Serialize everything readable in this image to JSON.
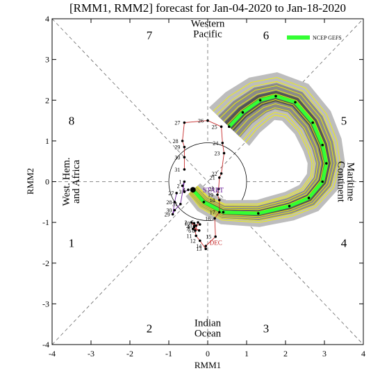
{
  "chart_data": {
    "type": "line",
    "title": "[RMM1, RMM2] forecast for Jan-04-2020 to Jan-18-2020",
    "xlabel": "RMM1",
    "ylabel": "RMM2",
    "xlim": [
      -4,
      4
    ],
    "ylim": [
      -4,
      4
    ],
    "xticks": [
      "-4",
      "-3",
      "-2",
      "-1",
      "0",
      "1",
      "2",
      "3",
      "4"
    ],
    "yticks": [
      "-4",
      "-3",
      "-2",
      "-1",
      "0",
      "1",
      "2",
      "3",
      "4"
    ],
    "grid": false,
    "legend": {
      "placement": "top-right",
      "entries": [
        {
          "name": "NCEP GEFS",
          "color": "#33ff33"
        }
      ]
    },
    "phases": [
      {
        "label": "1",
        "x": -3.5,
        "y": -1.5
      },
      {
        "label": "2",
        "x": -1.5,
        "y": -3.6
      },
      {
        "label": "3",
        "x": 1.5,
        "y": -3.6
      },
      {
        "label": "4",
        "x": 3.5,
        "y": -1.5
      },
      {
        "label": "5",
        "x": 3.5,
        "y": 1.5
      },
      {
        "label": "6",
        "x": 1.5,
        "y": 3.6
      },
      {
        "label": "7",
        "x": -1.5,
        "y": 3.6
      },
      {
        "label": "8",
        "x": -3.5,
        "y": 1.5
      }
    ],
    "regions": [
      {
        "name": "western-pacific",
        "lines": [
          "Western",
          "Pacific"
        ]
      },
      {
        "name": "indian-ocean",
        "lines": [
          "Indian",
          "Ocean"
        ]
      },
      {
        "name": "west-hem-africa",
        "lines": [
          "West. Hem.",
          "and Africa"
        ]
      },
      {
        "name": "maritime-continent",
        "lines": [
          "Maritime",
          "Continent"
        ]
      }
    ],
    "labels": {
      "start": "START",
      "month": "DEC"
    },
    "observed_dec": {
      "color": "#c62828",
      "points": [
        {
          "d": "1",
          "x": -0.35,
          "y": -1.1
        },
        {
          "d": "2",
          "x": -0.42,
          "y": -1.0
        },
        {
          "d": "3",
          "x": -0.3,
          "y": -1.08
        },
        {
          "d": "4",
          "x": -0.2,
          "y": -1.05
        },
        {
          "d": "5",
          "x": -0.25,
          "y": -1.0
        },
        {
          "d": "6",
          "x": -0.32,
          "y": -1.2
        },
        {
          "d": "7",
          "x": -0.38,
          "y": -1.16
        },
        {
          "d": "8",
          "x": -0.22,
          "y": -1.2
        },
        {
          "d": "9",
          "x": -0.35,
          "y": -1.12
        },
        {
          "d": "10",
          "x": -0.35,
          "y": -1.02
        },
        {
          "d": "11",
          "x": -0.3,
          "y": -1.33
        },
        {
          "d": "12",
          "x": -0.2,
          "y": -1.45
        },
        {
          "d": "13",
          "x": -0.05,
          "y": -1.65
        },
        {
          "d": "14",
          "x": -0.05,
          "y": -1.58
        },
        {
          "d": "15",
          "x": 0.2,
          "y": -1.35
        },
        {
          "d": "16",
          "x": 0.18,
          "y": -0.9
        },
        {
          "d": "17",
          "x": 0.3,
          "y": -0.75
        },
        {
          "d": "18",
          "x": 0.3,
          "y": -0.45
        },
        {
          "d": "19",
          "x": 0.25,
          "y": -0.32
        },
        {
          "d": "20",
          "x": 0.28,
          "y": -0.18
        },
        {
          "d": "21",
          "x": 0.3,
          "y": 0.1
        },
        {
          "d": "22",
          "x": 0.35,
          "y": 0.2
        },
        {
          "d": "23",
          "x": 0.42,
          "y": 0.7
        },
        {
          "d": "24",
          "x": 0.38,
          "y": 0.95
        },
        {
          "d": "25",
          "x": 0.35,
          "y": 1.35
        },
        {
          "d": "26",
          "x": 0.0,
          "y": 1.5
        },
        {
          "d": "27",
          "x": -0.6,
          "y": 1.45
        },
        {
          "d": "28",
          "x": -0.65,
          "y": 1.0
        },
        {
          "d": "29",
          "x": -0.6,
          "y": 0.85
        },
        {
          "d": "30",
          "x": -0.6,
          "y": 0.6
        },
        {
          "d": "31",
          "x": -0.6,
          "y": 0.3
        }
      ]
    },
    "observed_jan": {
      "color": "#6a1b9a",
      "points": [
        {
          "d": "1",
          "x": -0.6,
          "y": 0.0
        },
        {
          "d": "2",
          "x": -0.65,
          "y": -0.1
        },
        {
          "d": "3",
          "x": -0.6,
          "y": -0.25
        },
        {
          "d": "4",
          "x": -0.5,
          "y": -0.2
        }
      ],
      "trail": [
        {
          "d": "27",
          "x": -0.8,
          "y": -0.28
        },
        {
          "d": "28",
          "x": -0.85,
          "y": -0.5
        },
        {
          "d": "29",
          "x": -0.9,
          "y": -0.8
        },
        {
          "d": "30",
          "x": -0.85,
          "y": -0.7
        },
        {
          "d": "31",
          "x": -0.7,
          "y": -0.55
        }
      ],
      "start": {
        "x": -0.38,
        "y": -0.2
      }
    },
    "forecast_mean": {
      "name": "NCEP GEFS",
      "color": "#33ff33",
      "points": [
        {
          "x": -0.38,
          "y": -0.2
        },
        {
          "x": -0.1,
          "y": -0.5
        },
        {
          "x": 0.4,
          "y": -0.75
        },
        {
          "x": 1.3,
          "y": -0.78
        },
        {
          "x": 2.1,
          "y": -0.6
        },
        {
          "x": 2.6,
          "y": -0.4
        },
        {
          "x": 2.95,
          "y": 0.0
        },
        {
          "x": 3.05,
          "y": 0.45
        },
        {
          "x": 2.95,
          "y": 0.9
        },
        {
          "x": 2.7,
          "y": 1.45
        },
        {
          "x": 2.25,
          "y": 1.95
        },
        {
          "x": 1.75,
          "y": 2.1
        },
        {
          "x": 1.35,
          "y": 2.0
        },
        {
          "x": 0.9,
          "y": 1.7
        },
        {
          "x": 0.55,
          "y": 1.35
        }
      ]
    }
  }
}
